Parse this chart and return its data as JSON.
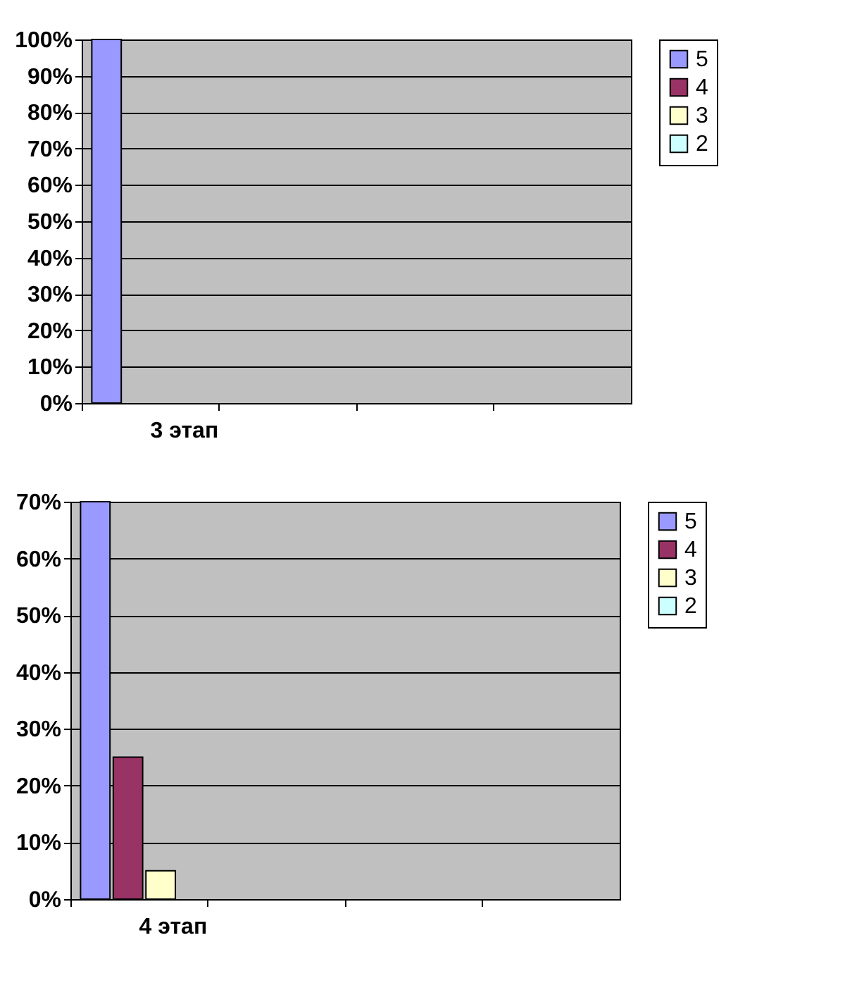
{
  "chart_data": [
    {
      "type": "bar",
      "categories": [
        "3 этап",
        null,
        null,
        null
      ],
      "series": [
        {
          "name": "5",
          "color": "#9999ff",
          "values": [
            100,
            null,
            null,
            null
          ]
        },
        {
          "name": "4",
          "color": "#993366",
          "values": [
            null,
            null,
            null,
            null
          ]
        },
        {
          "name": "3",
          "color": "#ffffcc",
          "values": [
            null,
            null,
            null,
            null
          ]
        },
        {
          "name": "2",
          "color": "#ccffff",
          "values": [
            null,
            null,
            null,
            null
          ]
        }
      ],
      "ylim": [
        0,
        100
      ],
      "yticks": [
        {
          "value": 0,
          "label": "0%"
        },
        {
          "value": 10,
          "label": "10%"
        },
        {
          "value": 20,
          "label": "20%"
        },
        {
          "value": 30,
          "label": "30%"
        },
        {
          "value": 40,
          "label": "40%"
        },
        {
          "value": 50,
          "label": "50%"
        },
        {
          "value": 60,
          "label": "60%"
        },
        {
          "value": 70,
          "label": "70%"
        },
        {
          "value": 80,
          "label": "80%"
        },
        {
          "value": 90,
          "label": "90%"
        },
        {
          "value": 100,
          "label": "100%"
        }
      ],
      "grid": "y",
      "legend": "right"
    },
    {
      "type": "bar",
      "categories": [
        "4 этап",
        null,
        null,
        null
      ],
      "series": [
        {
          "name": "5",
          "color": "#9999ff",
          "values": [
            70,
            null,
            null,
            null
          ]
        },
        {
          "name": "4",
          "color": "#993366",
          "values": [
            25,
            null,
            null,
            null
          ]
        },
        {
          "name": "3",
          "color": "#ffffcc",
          "values": [
            5,
            null,
            null,
            null
          ]
        },
        {
          "name": "2",
          "color": "#ccffff",
          "values": [
            null,
            null,
            null,
            null
          ]
        }
      ],
      "ylim": [
        0,
        70
      ],
      "yticks": [
        {
          "value": 0,
          "label": "0%"
        },
        {
          "value": 10,
          "label": "10%"
        },
        {
          "value": 20,
          "label": "20%"
        },
        {
          "value": 30,
          "label": "30%"
        },
        {
          "value": 40,
          "label": "40%"
        },
        {
          "value": 50,
          "label": "50%"
        },
        {
          "value": 60,
          "label": "60%"
        },
        {
          "value": 70,
          "label": "70%"
        }
      ],
      "grid": "y",
      "legend": "right"
    }
  ]
}
